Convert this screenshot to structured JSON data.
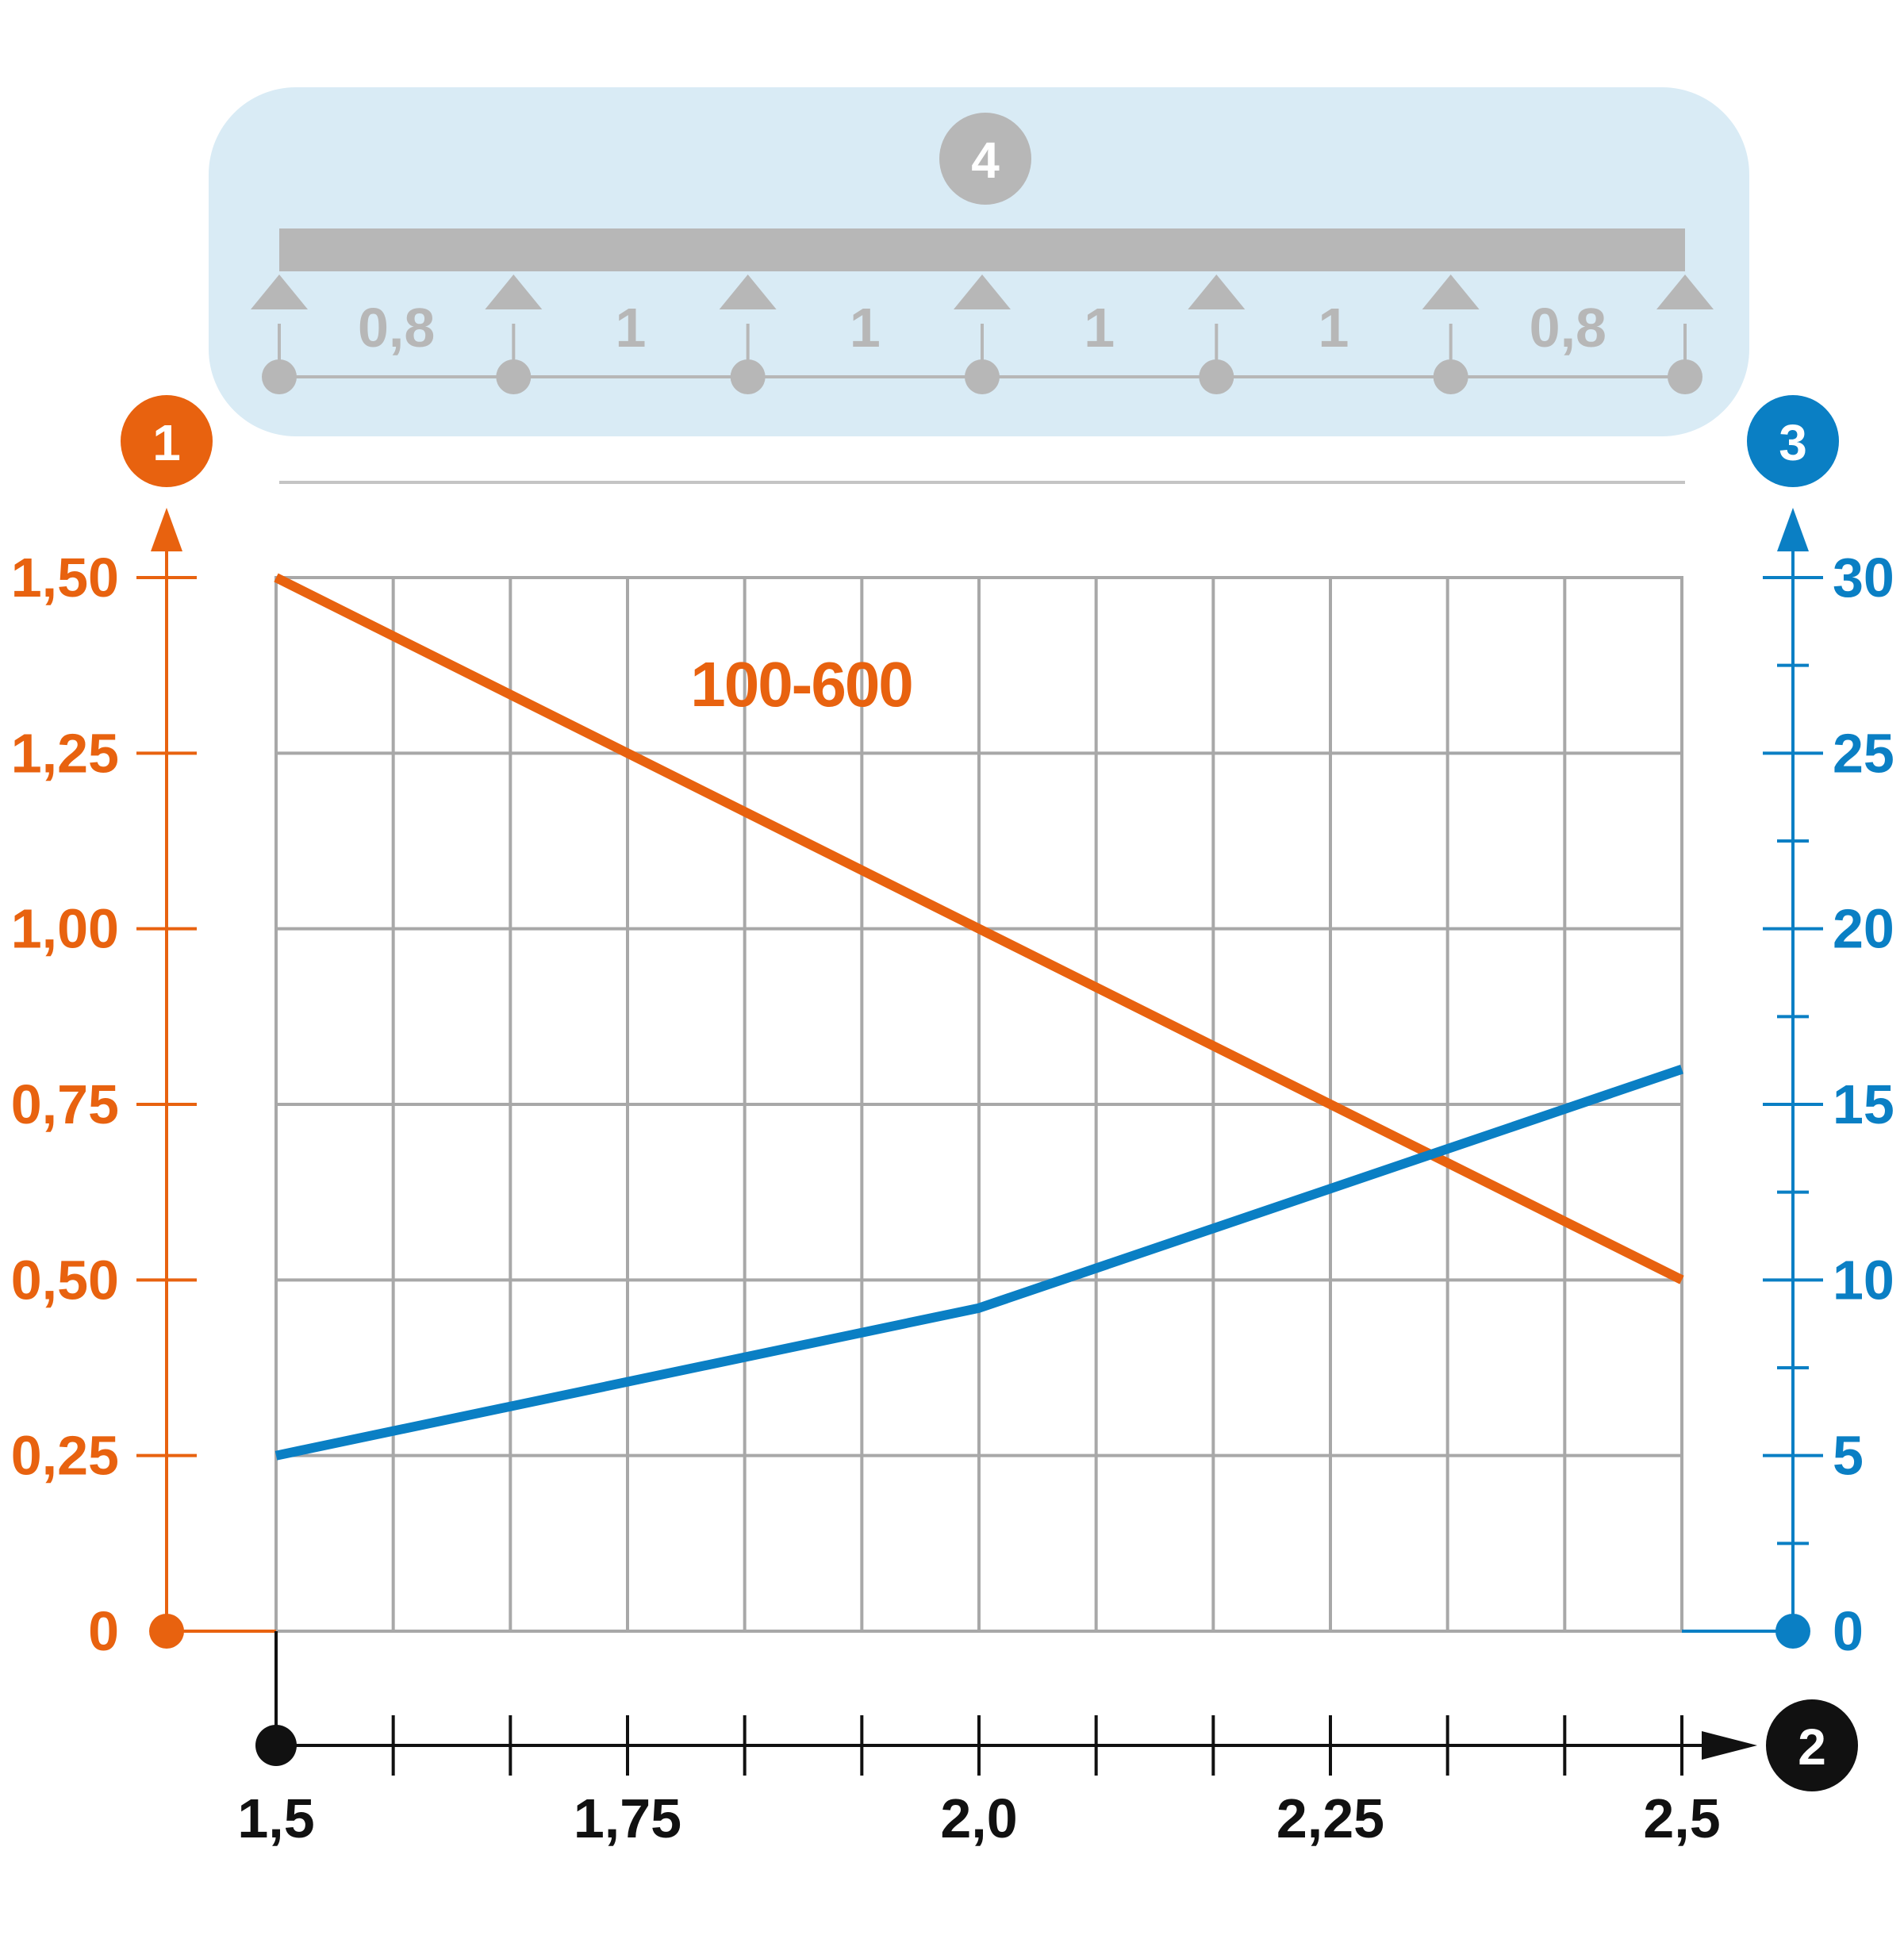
{
  "colors": {
    "left_axis": "#e8620f",
    "right_axis": "#0a7fc4",
    "x_axis": "#111111",
    "grid": "#a8a8a8",
    "span_panel": "#d9ebf5",
    "span_gray": "#b7b7b7"
  },
  "badges": {
    "left_axis": "1",
    "x_axis": "2",
    "right_axis": "3",
    "span_diagram": "4"
  },
  "span_diagram": {
    "spans": [
      "0,8",
      "1",
      "1",
      "1",
      "1",
      "0,8"
    ]
  },
  "chart_data": {
    "type": "line",
    "x": {
      "range": [
        1.5,
        2.5
      ],
      "tick_labels": [
        "1,5",
        "1,75",
        "2,0",
        "2,25",
        "2,5"
      ],
      "grid_step": 0.08333
    },
    "y_left": {
      "range": [
        0,
        1.5
      ],
      "tick_labels": [
        "0",
        "0,25",
        "0,50",
        "0,75",
        "1,00",
        "1,25",
        "1,50"
      ],
      "tick_values": [
        0,
        0.25,
        0.5,
        0.75,
        1.0,
        1.25,
        1.5
      ]
    },
    "y_right": {
      "range": [
        0,
        30
      ],
      "tick_labels": [
        "0",
        "5",
        "10",
        "15",
        "20",
        "25",
        "30"
      ],
      "tick_values": [
        0,
        5,
        10,
        15,
        20,
        25,
        30
      ],
      "minor_step": 2.5
    },
    "grid": true,
    "series": [
      {
        "name": "100-600",
        "axis": "left",
        "color": "#e8620f",
        "points": [
          [
            1.5,
            1.5
          ],
          [
            2.5,
            0.5
          ]
        ]
      },
      {
        "axis": "right",
        "color": "#0a7fc4",
        "points": [
          [
            1.5,
            5.0
          ],
          [
            2.0,
            9.2
          ],
          [
            2.5,
            16.0
          ]
        ]
      }
    ]
  }
}
